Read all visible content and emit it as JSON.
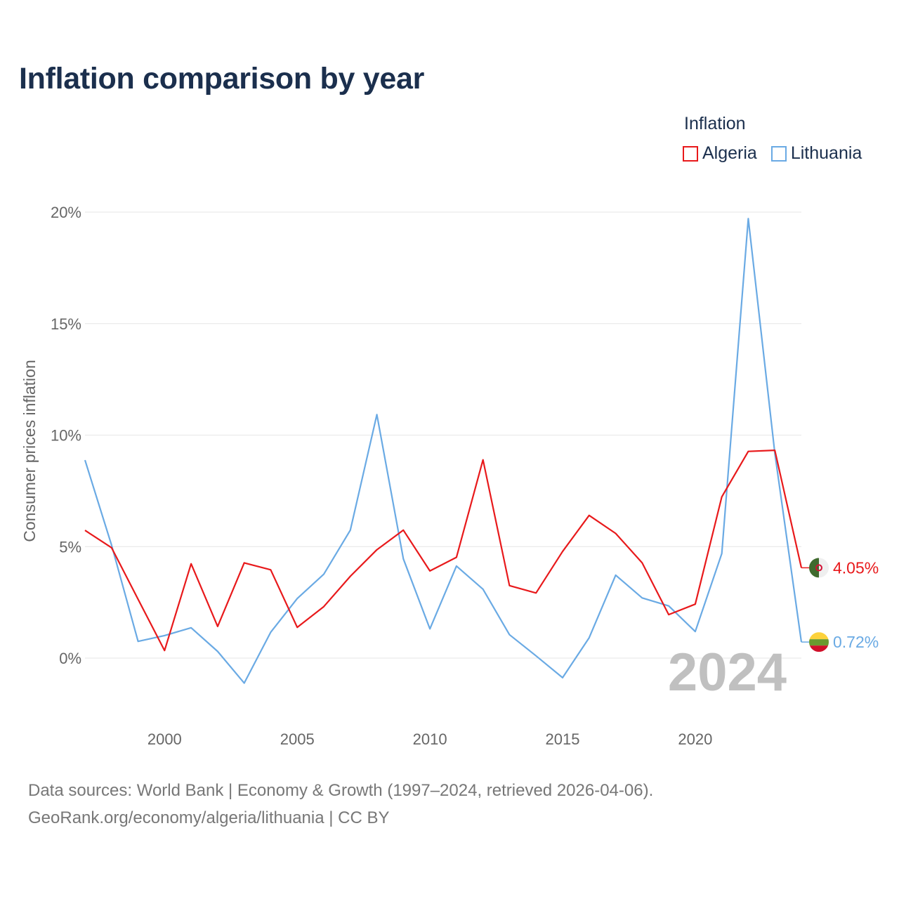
{
  "title": "Inflation comparison by year",
  "legend": {
    "title": "Inflation",
    "items": [
      {
        "label": "Algeria",
        "color": "#e8191b"
      },
      {
        "label": "Lithuania",
        "color": "#6aaae4"
      }
    ]
  },
  "chart_data": {
    "type": "line",
    "ylabel": "Consumer prices inflation",
    "xlabel": "",
    "xlim": [
      1997,
      2024
    ],
    "ylim": [
      -2.5,
      21
    ],
    "x_ticks": [
      2000,
      2005,
      2010,
      2015,
      2020
    ],
    "y_ticks": [
      {
        "value": 0,
        "label": "0%"
      },
      {
        "value": 5,
        "label": "5%"
      },
      {
        "value": 10,
        "label": "10%"
      },
      {
        "value": 15,
        "label": "15%"
      },
      {
        "value": 20,
        "label": "20%"
      }
    ],
    "grid": true,
    "x": [
      1997,
      1998,
      1999,
      2000,
      2001,
      2002,
      2003,
      2004,
      2005,
      2006,
      2007,
      2008,
      2009,
      2010,
      2011,
      2012,
      2013,
      2014,
      2015,
      2016,
      2017,
      2018,
      2019,
      2020,
      2021,
      2022,
      2023,
      2024
    ],
    "series": [
      {
        "name": "Algeria",
        "color": "#e8191b",
        "values": [
          5.73,
          4.95,
          2.64,
          0.34,
          4.23,
          1.42,
          4.27,
          3.96,
          1.38,
          2.31,
          3.67,
          4.86,
          5.74,
          3.91,
          4.52,
          8.89,
          3.25,
          2.92,
          4.78,
          6.4,
          5.59,
          4.27,
          1.95,
          2.42,
          7.23,
          9.27,
          9.32,
          4.05
        ]
      },
      {
        "name": "Lithuania",
        "color": "#6aaae4",
        "values": [
          8.88,
          5.07,
          0.75,
          1.01,
          1.36,
          0.3,
          -1.12,
          1.16,
          2.67,
          3.76,
          5.74,
          10.92,
          4.45,
          1.31,
          4.13,
          3.09,
          1.05,
          0.1,
          -0.88,
          0.91,
          3.72,
          2.7,
          2.34,
          1.19,
          4.69,
          19.71,
          9.19,
          0.72
        ]
      }
    ],
    "end_labels": [
      {
        "series": "Algeria",
        "value": 4.05,
        "label": "4.05%"
      },
      {
        "series": "Lithuania",
        "value": 0.72,
        "label": "0.72%"
      }
    ],
    "watermark_year": "2024"
  },
  "source": {
    "line1": "Data sources: World Bank | Economy & Growth (1997–2024, retrieved 2026-04-06).",
    "line2": "GeoRank.org/economy/algeria/lithuania | CC BY"
  }
}
